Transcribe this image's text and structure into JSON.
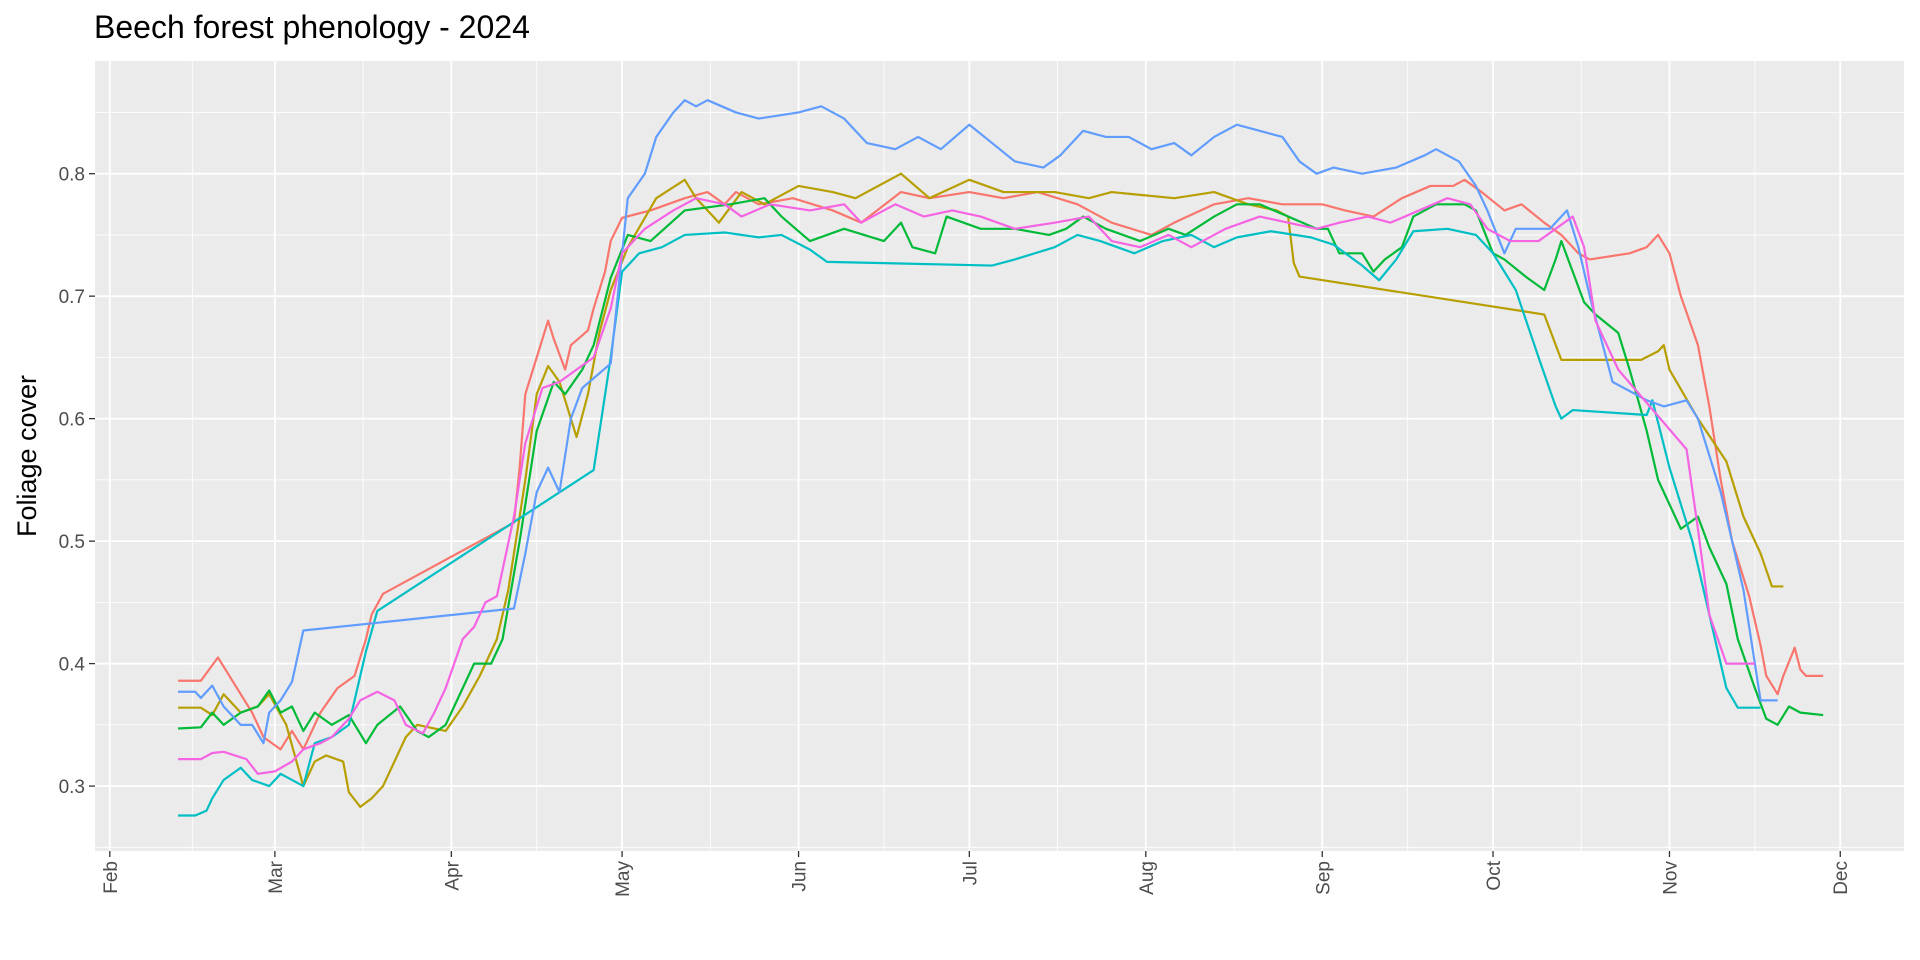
{
  "chart_data": {
    "type": "line",
    "title": "Beech forest phenology - 2024",
    "y_label": "Foliage cover",
    "xlim": [
      29.4,
      347.2
    ],
    "ylim": [
      0.247,
      0.892
    ],
    "xticks": [
      {
        "value": 32,
        "label": "Feb"
      },
      {
        "value": 61,
        "label": "Mar"
      },
      {
        "value": 92,
        "label": "Apr"
      },
      {
        "value": 122,
        "label": "May"
      },
      {
        "value": 153,
        "label": "Jun"
      },
      {
        "value": 183,
        "label": "Jul"
      },
      {
        "value": 214,
        "label": "Aug"
      },
      {
        "value": 245,
        "label": "Sep"
      },
      {
        "value": 275,
        "label": "Oct"
      },
      {
        "value": 306,
        "label": "Nov"
      },
      {
        "value": 336,
        "label": "Dec"
      }
    ],
    "yticks": [
      0.3,
      0.4,
      0.5,
      0.6,
      0.7,
      0.8
    ],
    "grid": true,
    "series": [
      {
        "color": "#F8766D",
        "x": [
          44,
          48,
          51,
          53,
          55,
          57,
          59,
          62,
          64,
          66,
          69,
          72,
          75,
          77,
          78,
          80,
          103,
          104,
          105,
          107,
          109,
          110,
          112,
          113,
          116,
          117,
          119,
          120,
          122,
          127,
          130,
          133,
          137,
          140,
          142,
          146,
          152,
          159,
          164,
          171,
          176,
          183,
          189,
          195,
          202,
          208,
          215,
          219,
          226,
          232,
          238,
          245,
          249,
          254,
          259,
          264,
          268,
          270,
          273,
          277,
          280,
          284,
          287,
          290,
          292,
          299,
          302,
          304,
          306,
          308,
          311,
          313,
          315,
          317,
          320,
          322,
          323,
          325,
          326,
          328,
          329,
          330,
          333
        ],
        "values": [
          0.386,
          0.386,
          0.405,
          0.39,
          0.375,
          0.36,
          0.34,
          0.33,
          0.345,
          0.33,
          0.36,
          0.38,
          0.39,
          0.42,
          0.44,
          0.457,
          0.515,
          0.56,
          0.62,
          0.65,
          0.68,
          0.665,
          0.64,
          0.66,
          0.672,
          0.69,
          0.72,
          0.745,
          0.764,
          0.77,
          0.775,
          0.78,
          0.785,
          0.775,
          0.785,
          0.775,
          0.78,
          0.77,
          0.76,
          0.785,
          0.78,
          0.785,
          0.78,
          0.785,
          0.775,
          0.76,
          0.75,
          0.76,
          0.775,
          0.78,
          0.775,
          0.775,
          0.77,
          0.765,
          0.78,
          0.79,
          0.79,
          0.795,
          0.785,
          0.77,
          0.775,
          0.76,
          0.75,
          0.735,
          0.73,
          0.735,
          0.74,
          0.75,
          0.735,
          0.7,
          0.66,
          0.61,
          0.55,
          0.5,
          0.455,
          0.415,
          0.39,
          0.375,
          0.39,
          0.413,
          0.395,
          0.39,
          0.39
        ]
      },
      {
        "color": "#B79F00",
        "x": [
          44,
          48,
          50,
          52,
          55,
          58,
          60,
          63,
          66,
          68,
          70,
          73,
          74,
          76,
          78,
          80,
          84,
          86,
          91,
          94,
          97,
          100,
          102,
          105,
          107,
          109,
          111,
          114,
          116,
          118,
          120,
          123,
          128,
          133,
          135,
          139,
          143,
          147,
          153,
          159,
          163,
          171,
          176,
          183,
          189,
          198,
          204,
          208,
          219,
          226,
          232,
          237,
          239,
          240,
          241,
          284,
          287,
          301,
          304,
          305,
          306,
          311,
          316,
          319,
          322,
          324,
          326
        ],
        "values": [
          0.364,
          0.364,
          0.358,
          0.375,
          0.36,
          0.365,
          0.375,
          0.35,
          0.3,
          0.32,
          0.325,
          0.32,
          0.295,
          0.283,
          0.29,
          0.3,
          0.34,
          0.35,
          0.345,
          0.365,
          0.39,
          0.42,
          0.46,
          0.55,
          0.62,
          0.643,
          0.63,
          0.585,
          0.62,
          0.67,
          0.705,
          0.74,
          0.78,
          0.795,
          0.78,
          0.76,
          0.785,
          0.775,
          0.79,
          0.785,
          0.78,
          0.8,
          0.78,
          0.795,
          0.785,
          0.785,
          0.78,
          0.785,
          0.78,
          0.785,
          0.775,
          0.77,
          0.765,
          0.727,
          0.716,
          0.685,
          0.648,
          0.648,
          0.655,
          0.66,
          0.64,
          0.6,
          0.565,
          0.52,
          0.49,
          0.463,
          0.463
        ]
      },
      {
        "color": "#00BA38",
        "x": [
          44,
          48,
          50,
          52,
          55,
          58,
          60,
          62,
          64,
          66,
          68,
          71,
          74,
          77,
          79,
          83,
          86,
          88,
          91,
          94,
          96,
          99,
          101,
          104,
          107,
          110,
          112,
          115,
          117,
          120,
          123,
          127,
          133,
          141,
          147,
          150,
          155,
          161,
          168,
          171,
          173,
          177,
          179,
          185,
          191,
          197,
          200,
          203,
          207,
          213,
          218,
          221,
          226,
          230,
          234,
          239,
          244,
          246,
          248,
          252,
          254,
          256,
          259,
          261,
          265,
          270,
          272,
          275,
          277,
          281,
          284,
          286,
          287,
          291,
          293,
          297,
          299,
          302,
          304,
          308,
          311,
          313,
          316,
          318,
          321,
          323,
          325,
          327,
          329,
          333
        ],
        "values": [
          0.347,
          0.348,
          0.36,
          0.35,
          0.36,
          0.365,
          0.378,
          0.36,
          0.365,
          0.345,
          0.36,
          0.35,
          0.358,
          0.335,
          0.35,
          0.365,
          0.345,
          0.34,
          0.35,
          0.38,
          0.4,
          0.4,
          0.42,
          0.5,
          0.59,
          0.63,
          0.62,
          0.64,
          0.66,
          0.715,
          0.75,
          0.745,
          0.77,
          0.775,
          0.78,
          0.765,
          0.745,
          0.755,
          0.745,
          0.76,
          0.74,
          0.735,
          0.765,
          0.755,
          0.755,
          0.75,
          0.755,
          0.765,
          0.755,
          0.745,
          0.755,
          0.75,
          0.765,
          0.775,
          0.775,
          0.765,
          0.755,
          0.755,
          0.735,
          0.735,
          0.72,
          0.73,
          0.74,
          0.765,
          0.775,
          0.775,
          0.77,
          0.735,
          0.73,
          0.715,
          0.705,
          0.73,
          0.745,
          0.695,
          0.685,
          0.67,
          0.64,
          0.59,
          0.55,
          0.51,
          0.52,
          0.495,
          0.465,
          0.42,
          0.38,
          0.355,
          0.35,
          0.365,
          0.36,
          0.358
        ]
      },
      {
        "color": "#00BFC4",
        "x": [
          44,
          47,
          49,
          50,
          52,
          55,
          57,
          60,
          62,
          64,
          66,
          68,
          71,
          74,
          75,
          77,
          79,
          117,
          120,
          122,
          125,
          129,
          133,
          140,
          146,
          150,
          155,
          158,
          187,
          191,
          198,
          202,
          206,
          212,
          217,
          222,
          226,
          230,
          236,
          243,
          247,
          252,
          255,
          258,
          261,
          267,
          272,
          275,
          279,
          283,
          286,
          287,
          289,
          302,
          303,
          306,
          310,
          313,
          316,
          318,
          322
        ],
        "values": [
          0.276,
          0.276,
          0.28,
          0.29,
          0.305,
          0.315,
          0.305,
          0.3,
          0.31,
          0.305,
          0.3,
          0.335,
          0.34,
          0.35,
          0.37,
          0.41,
          0.443,
          0.558,
          0.65,
          0.72,
          0.735,
          0.74,
          0.75,
          0.752,
          0.748,
          0.75,
          0.738,
          0.728,
          0.725,
          0.73,
          0.74,
          0.75,
          0.745,
          0.735,
          0.745,
          0.75,
          0.74,
          0.748,
          0.753,
          0.748,
          0.742,
          0.725,
          0.713,
          0.73,
          0.753,
          0.755,
          0.75,
          0.735,
          0.705,
          0.65,
          0.61,
          0.6,
          0.607,
          0.603,
          0.615,
          0.56,
          0.5,
          0.44,
          0.38,
          0.364,
          0.364
        ]
      },
      {
        "color": "#619CFF",
        "x": [
          44,
          47,
          48,
          50,
          52,
          55,
          57,
          59,
          60,
          62,
          64,
          66,
          103,
          105,
          107,
          109,
          111,
          113,
          115,
          120,
          123,
          126,
          128,
          131,
          133,
          135,
          137,
          142,
          146,
          153,
          157,
          161,
          165,
          170,
          174,
          178,
          183,
          187,
          191,
          196,
          199,
          203,
          207,
          211,
          215,
          219,
          222,
          226,
          230,
          234,
          238,
          241,
          244,
          247,
          252,
          258,
          263,
          265,
          269,
          272,
          274,
          277,
          279,
          285,
          288,
          290,
          292,
          296,
          302,
          305,
          309,
          311,
          315,
          319,
          322,
          325
        ],
        "values": [
          0.377,
          0.377,
          0.372,
          0.382,
          0.365,
          0.35,
          0.35,
          0.335,
          0.36,
          0.37,
          0.385,
          0.427,
          0.445,
          0.49,
          0.54,
          0.56,
          0.54,
          0.6,
          0.625,
          0.645,
          0.78,
          0.8,
          0.83,
          0.85,
          0.86,
          0.855,
          0.86,
          0.85,
          0.845,
          0.85,
          0.855,
          0.845,
          0.825,
          0.82,
          0.83,
          0.82,
          0.84,
          0.825,
          0.81,
          0.805,
          0.815,
          0.835,
          0.83,
          0.83,
          0.82,
          0.825,
          0.815,
          0.83,
          0.84,
          0.835,
          0.83,
          0.81,
          0.8,
          0.805,
          0.8,
          0.805,
          0.815,
          0.82,
          0.81,
          0.79,
          0.77,
          0.735,
          0.755,
          0.755,
          0.77,
          0.74,
          0.7,
          0.63,
          0.615,
          0.61,
          0.615,
          0.6,
          0.54,
          0.46,
          0.37,
          0.37
        ]
      },
      {
        "color": "#F564E3",
        "x": [
          44,
          48,
          50,
          52,
          56,
          58,
          61,
          64,
          66,
          69,
          71,
          74,
          76,
          79,
          82,
          84,
          87,
          89,
          91,
          94,
          96,
          98,
          100,
          103,
          105,
          108,
          111,
          114,
          117,
          120,
          122,
          126,
          131,
          135,
          140,
          143,
          148,
          155,
          161,
          164,
          170,
          175,
          180,
          185,
          191,
          198,
          204,
          208,
          213,
          218,
          222,
          228,
          234,
          239,
          244,
          248,
          253,
          257,
          262,
          267,
          271,
          274,
          278,
          283,
          286,
          289,
          291,
          293,
          297,
          309,
          311,
          313,
          316,
          321
        ],
        "values": [
          0.322,
          0.322,
          0.327,
          0.328,
          0.322,
          0.31,
          0.312,
          0.32,
          0.33,
          0.335,
          0.34,
          0.355,
          0.37,
          0.377,
          0.37,
          0.35,
          0.343,
          0.36,
          0.38,
          0.42,
          0.43,
          0.45,
          0.455,
          0.52,
          0.58,
          0.625,
          0.63,
          0.64,
          0.65,
          0.69,
          0.735,
          0.755,
          0.77,
          0.78,
          0.775,
          0.765,
          0.775,
          0.77,
          0.775,
          0.76,
          0.775,
          0.765,
          0.77,
          0.765,
          0.755,
          0.76,
          0.765,
          0.745,
          0.74,
          0.75,
          0.74,
          0.755,
          0.765,
          0.76,
          0.755,
          0.76,
          0.765,
          0.76,
          0.77,
          0.78,
          0.775,
          0.755,
          0.745,
          0.745,
          0.755,
          0.765,
          0.74,
          0.68,
          0.64,
          0.575,
          0.51,
          0.44,
          0.4,
          0.4
        ]
      }
    ]
  }
}
